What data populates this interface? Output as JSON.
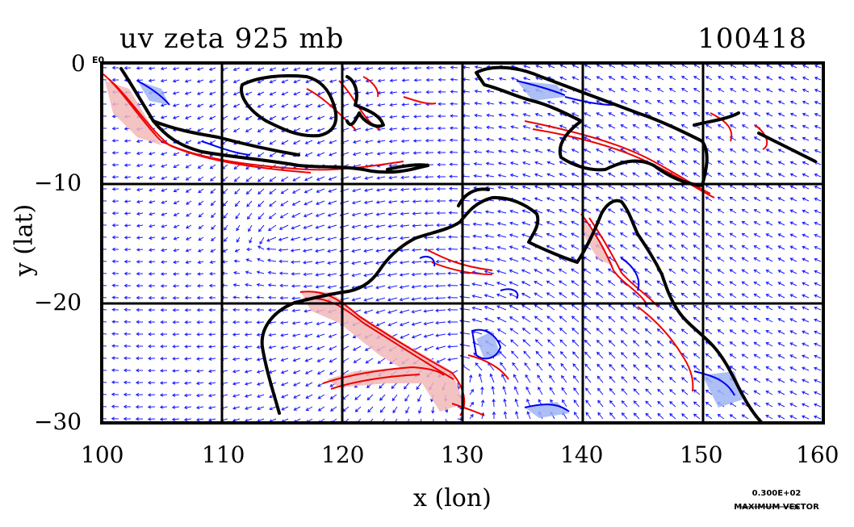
{
  "header": {
    "title_left": "uv zeta 925 mb",
    "title_right": "100418"
  },
  "axes": {
    "xlabel": "x (lon)",
    "ylabel": "y (lat)",
    "x_ticks": [
      "100",
      "110",
      "120",
      "130",
      "140",
      "150",
      "160"
    ],
    "y_ticks": [
      "0",
      "−10",
      "−20",
      "−30"
    ],
    "y_top_suffix": "E0",
    "xlim": [
      100,
      160
    ],
    "ylim": [
      -30,
      0
    ],
    "grid": true
  },
  "legend": {
    "vector_value": "0.300E+02",
    "vector_label": "MAXIMUM VECTOR"
  },
  "colors": {
    "coastline": "#000000",
    "vectors": "#1a1aff",
    "positive_contour": "#ee0000",
    "negative_contour": "#0000ee",
    "positive_fill": "#f2b8b8",
    "negative_fill": "#9fb4f5"
  }
}
